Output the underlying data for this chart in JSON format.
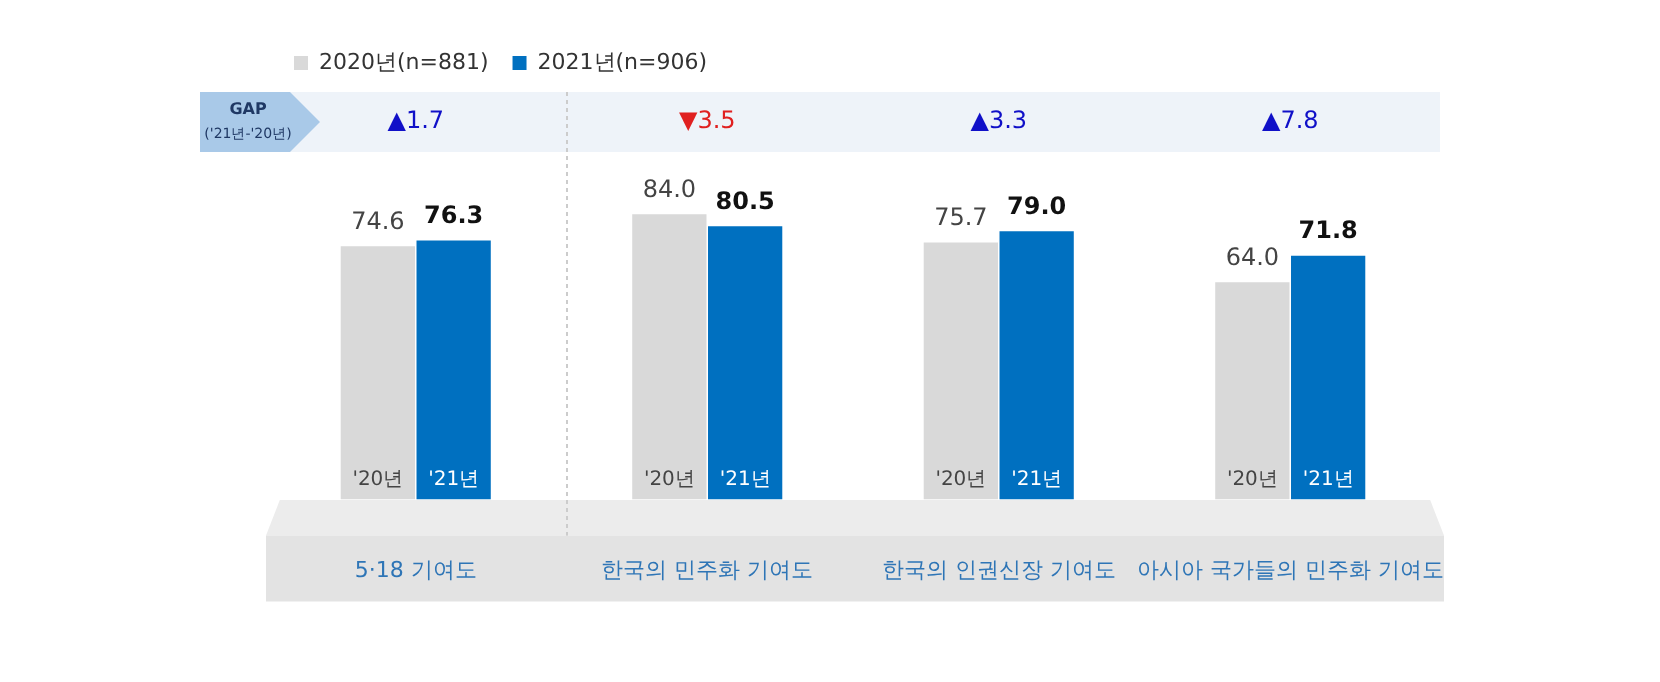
{
  "chart_data": {
    "type": "bar",
    "categories": [
      "5·18 기여도",
      "한국의 민주화 기여도",
      "한국의 인권신장 기여도",
      "아시아 국가들의 민주화 기여도"
    ],
    "series": [
      {
        "name": "2020년(n=881)",
        "color": "#d9d9d9",
        "values": [
          74.6,
          84.0,
          75.7,
          64.0
        ],
        "value_labels": [
          "74.6",
          "84.0",
          "75.7",
          "64.0"
        ]
      },
      {
        "name": "2021년(n=906)",
        "color": "#0070c0",
        "values": [
          76.3,
          80.5,
          79.0,
          71.8
        ],
        "value_labels": [
          "76.3",
          "80.5",
          "79.0",
          "71.8"
        ]
      }
    ],
    "legend": "top",
    "grid": false,
    "annotations": [
      "GAP",
      "('21년-'20년)",
      "▲1.7",
      "▼3.5",
      "▲3.3",
      "▲7.8",
      "'20년",
      "'21년"
    ]
  }
}
